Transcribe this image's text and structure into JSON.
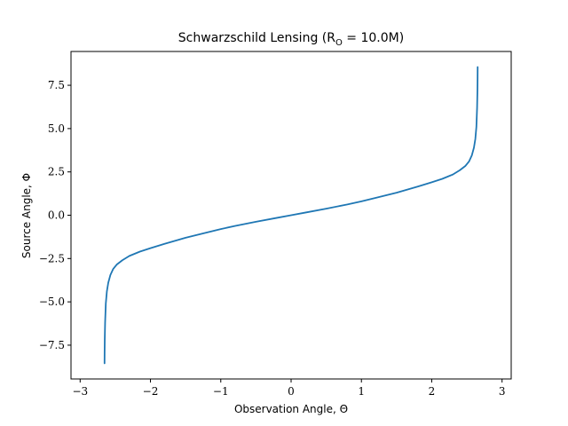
{
  "chart_data": {
    "type": "line",
    "title": "Schwarzschild Lensing (R",
    "title_sub": "O",
    "title_tail": " = 10.0M)",
    "xlabel": "Observation Angle, Θ",
    "ylabel": "Source Angle, Φ",
    "xlim": [
      -3.13,
      3.13
    ],
    "ylim": [
      -9.45,
      9.45
    ],
    "xticks": [
      -3,
      -2,
      -1,
      0,
      1,
      2,
      3
    ],
    "xtick_labels": [
      "−3",
      "−2",
      "−1",
      "0",
      "1",
      "2",
      "3"
    ],
    "yticks": [
      -7.5,
      -5.0,
      -2.5,
      0.0,
      2.5,
      5.0,
      7.5
    ],
    "ytick_labels": [
      "−7.5",
      "−5.0",
      "−2.5",
      "0.0",
      "2.5",
      "5.0",
      "7.5"
    ],
    "grid": false,
    "line_color": "#1f77b4",
    "series": [
      {
        "x": [
          -2.653,
          -2.652,
          -2.65,
          -2.645,
          -2.635,
          -2.62,
          -2.6,
          -2.57,
          -2.53,
          -2.48,
          -2.4,
          -2.3,
          -2.15,
          -2.0,
          -1.8,
          -1.5,
          -1.2,
          -1.0,
          -0.8,
          -0.5,
          -0.2,
          0.0,
          0.2,
          0.5,
          0.8,
          1.0,
          1.2,
          1.5,
          1.8,
          2.0,
          2.15,
          2.3,
          2.4,
          2.48,
          2.53,
          2.57,
          2.6,
          2.62,
          2.635,
          2.645,
          2.65,
          2.652,
          2.653
        ],
        "y": [
          -8.55,
          -7.9,
          -7.2,
          -6.2,
          -5.1,
          -4.4,
          -3.9,
          -3.45,
          -3.1,
          -2.85,
          -2.6,
          -2.35,
          -2.1,
          -1.9,
          -1.65,
          -1.3,
          -1.0,
          -0.8,
          -0.62,
          -0.38,
          -0.15,
          0.0,
          0.15,
          0.38,
          0.62,
          0.8,
          1.0,
          1.3,
          1.65,
          1.9,
          2.1,
          2.35,
          2.6,
          2.85,
          3.1,
          3.45,
          3.9,
          4.4,
          5.1,
          6.2,
          7.2,
          7.9,
          8.55
        ]
      }
    ]
  }
}
